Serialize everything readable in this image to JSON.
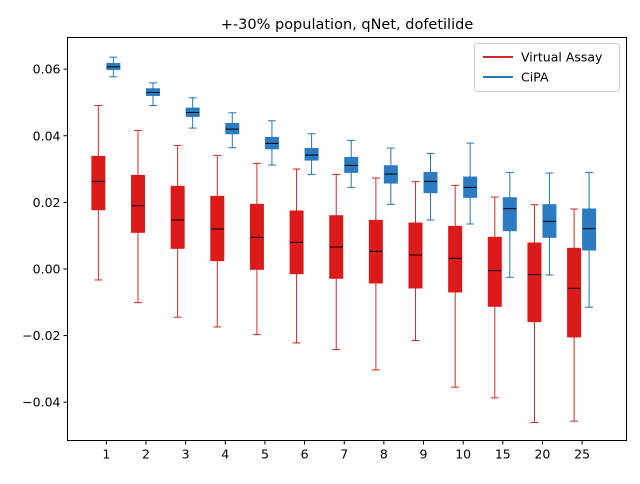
{
  "chart_data": {
    "type": "boxplot",
    "title": "+-30% population, qNet, dofetilide",
    "xlabel": "",
    "ylabel": "",
    "categories": [
      "1",
      "2",
      "3",
      "4",
      "5",
      "6",
      "7",
      "8",
      "9",
      "10",
      "15",
      "20",
      "25"
    ],
    "ylim": [
      -0.0515,
      0.0695
    ],
    "yticks": [
      -0.04,
      -0.02,
      0.0,
      0.02,
      0.04,
      0.06
    ],
    "ytick_labels": [
      "−0.04",
      "−0.02",
      "0.00",
      "0.02",
      "0.04",
      "0.06"
    ],
    "grid": false,
    "legend_position": "top-right",
    "series": [
      {
        "name": "Virtual Assay",
        "color": "#d62728",
        "fill": "#dd1a1a",
        "boxes": [
          {
            "whislo": -0.0033,
            "q1": 0.0178,
            "med": 0.0263,
            "q3": 0.0338,
            "whishi": 0.0491
          },
          {
            "whislo": -0.0101,
            "q1": 0.011,
            "med": 0.019,
            "q3": 0.0281,
            "whishi": 0.0416
          },
          {
            "whislo": -0.0145,
            "q1": 0.0062,
            "med": 0.0147,
            "q3": 0.0248,
            "whishi": 0.0371
          },
          {
            "whislo": -0.0174,
            "q1": 0.0025,
            "med": 0.012,
            "q3": 0.0218,
            "whishi": 0.0341
          },
          {
            "whislo": -0.0197,
            "q1": -0.0001,
            "med": 0.0095,
            "q3": 0.0194,
            "whishi": 0.0317
          },
          {
            "whislo": -0.0222,
            "q1": -0.0014,
            "med": 0.008,
            "q3": 0.0174,
            "whishi": 0.03
          },
          {
            "whislo": -0.0242,
            "q1": -0.0028,
            "med": 0.0066,
            "q3": 0.016,
            "whishi": 0.0284
          },
          {
            "whislo": -0.0303,
            "q1": -0.0042,
            "med": 0.0053,
            "q3": 0.0146,
            "whishi": 0.0273
          },
          {
            "whislo": -0.0215,
            "q1": -0.0057,
            "med": 0.0042,
            "q3": 0.0138,
            "whishi": 0.0262
          },
          {
            "whislo": -0.0355,
            "q1": -0.0069,
            "med": 0.0032,
            "q3": 0.0128,
            "whishi": 0.0251
          },
          {
            "whislo": -0.0387,
            "q1": -0.0112,
            "med": -0.0005,
            "q3": 0.0095,
            "whishi": 0.0216
          },
          {
            "whislo": -0.0461,
            "q1": -0.0158,
            "med": -0.0017,
            "q3": 0.0078,
            "whishi": 0.0193
          },
          {
            "whislo": -0.0457,
            "q1": -0.0204,
            "med": -0.0058,
            "q3": 0.0062,
            "whishi": 0.018
          }
        ]
      },
      {
        "name": "CiPA",
        "color": "#1f77b4",
        "fill": "#2c7bc0",
        "boxes": [
          {
            "whislo": 0.0577,
            "q1": 0.0599,
            "med": 0.0607,
            "q3": 0.0617,
            "whishi": 0.0636
          },
          {
            "whislo": 0.0491,
            "q1": 0.0521,
            "med": 0.053,
            "q3": 0.0541,
            "whishi": 0.0559
          },
          {
            "whislo": 0.0423,
            "q1": 0.0458,
            "med": 0.047,
            "q3": 0.0483,
            "whishi": 0.0514
          },
          {
            "whislo": 0.0364,
            "q1": 0.0406,
            "med": 0.042,
            "q3": 0.0437,
            "whishi": 0.0469
          },
          {
            "whislo": 0.0312,
            "q1": 0.0361,
            "med": 0.0377,
            "q3": 0.0395,
            "whishi": 0.0445
          },
          {
            "whislo": 0.0284,
            "q1": 0.0327,
            "med": 0.0342,
            "q3": 0.0362,
            "whishi": 0.0406
          },
          {
            "whislo": 0.0245,
            "q1": 0.029,
            "med": 0.0311,
            "q3": 0.0335,
            "whishi": 0.0386
          },
          {
            "whislo": 0.0194,
            "q1": 0.0258,
            "med": 0.0285,
            "q3": 0.031,
            "whishi": 0.0363
          },
          {
            "whislo": 0.0147,
            "q1": 0.0229,
            "med": 0.0263,
            "q3": 0.029,
            "whishi": 0.0347
          },
          {
            "whislo": 0.0135,
            "q1": 0.0215,
            "med": 0.0245,
            "q3": 0.0276,
            "whishi": 0.0378
          },
          {
            "whislo": -0.0025,
            "q1": 0.0115,
            "med": 0.0181,
            "q3": 0.0214,
            "whishi": 0.029
          },
          {
            "whislo": -0.0018,
            "q1": 0.0095,
            "med": 0.0143,
            "q3": 0.0193,
            "whishi": 0.0288
          },
          {
            "whislo": -0.0115,
            "q1": 0.0057,
            "med": 0.0121,
            "q3": 0.018,
            "whishi": 0.029
          }
        ]
      }
    ]
  }
}
